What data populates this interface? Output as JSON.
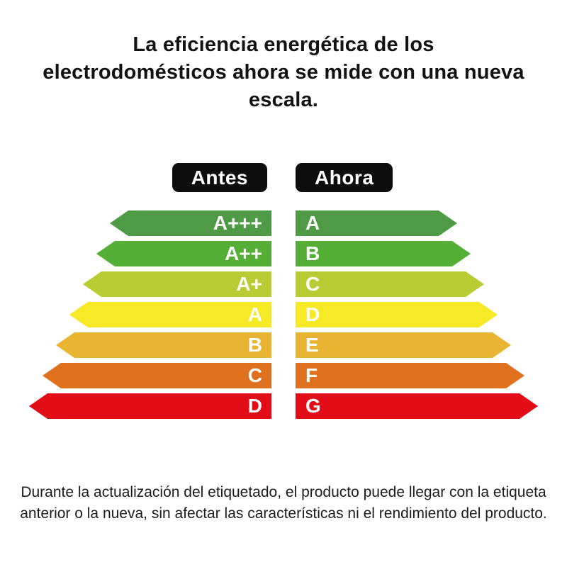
{
  "title": {
    "text": "La eficiencia energética de los electrodomésticos ahora se mide con una nueva escala."
  },
  "header": {
    "before_label": "Antes",
    "after_label": "Ahora",
    "badge_bg": "#0d0d0d",
    "badge_text_color": "#ffffff"
  },
  "scale_rows": [
    {
      "before": "A+++",
      "after": "A",
      "color": "#4f9b45"
    },
    {
      "before": "A++",
      "after": "B",
      "color": "#55af36"
    },
    {
      "before": "A+",
      "after": "C",
      "color": "#b9cc33"
    },
    {
      "before": "A",
      "after": "D",
      "color": "#f6e926"
    },
    {
      "before": "B",
      "after": "E",
      "color": "#e8b432"
    },
    {
      "before": "C",
      "after": "F",
      "color": "#e0711e"
    },
    {
      "before": "D",
      "after": "G",
      "color": "#e20d17"
    }
  ],
  "footer": {
    "text": "Durante la actualización del etiquetado, el producto puede llegar con la etiqueta anterior o la nueva, sin afectar las características ni el rendimiento del producto."
  }
}
